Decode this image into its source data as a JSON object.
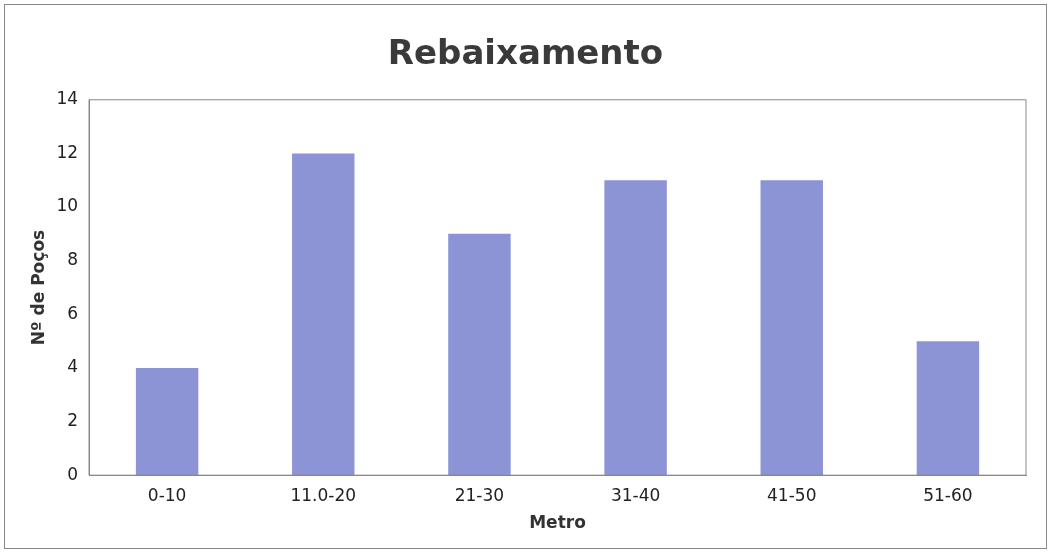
{
  "chart_data": {
    "type": "bar",
    "title": "Rebaixamento",
    "xlabel": "Metro",
    "ylabel": "Nº de Poços",
    "categories": [
      "0-10",
      "11.0-20",
      "21-30",
      "31-40",
      "41-50",
      "51-60"
    ],
    "values": [
      4,
      12,
      9,
      11,
      11,
      5
    ],
    "color": "#8c94d6",
    "ylim": [
      0,
      14
    ],
    "yticks": [
      0,
      2,
      4,
      6,
      8,
      10,
      12,
      14
    ],
    "grid": false,
    "legend": false
  }
}
